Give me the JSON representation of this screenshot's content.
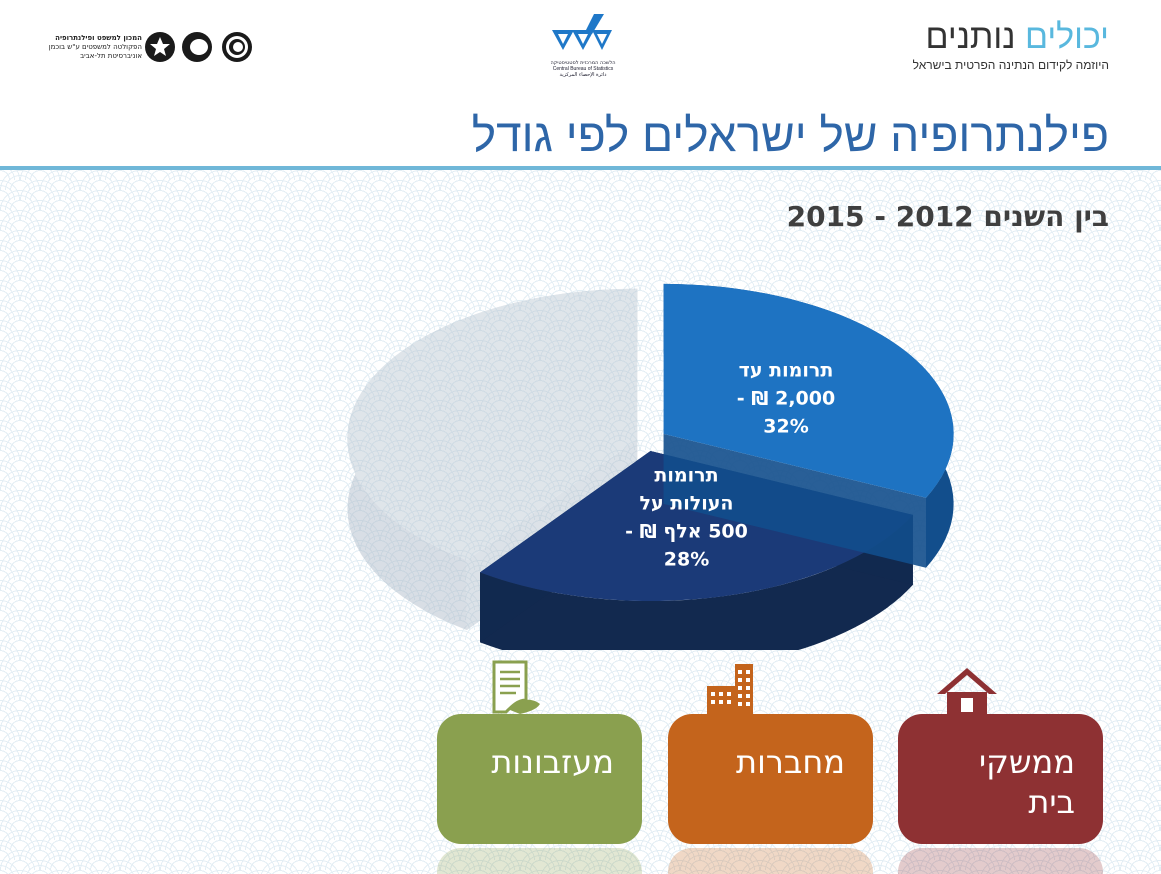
{
  "header": {
    "brand_part1": "יכולים",
    "brand_part2": "נותנים",
    "brand_tagline": "היוזמה לקידום הנתינה הפרטית בישראל",
    "cbs_hebrew": "הלשכה המרכזית לסטטיסטיקה",
    "cbs_english": "Central Bureau of Statistics",
    "cbs_arabic": "دائرة الإحصاء المركزية",
    "tau_line1": "המכון למשפט ופילנתרופיה",
    "tau_line2": "הפקולטה למשפטים ע\"ש בוכמן",
    "tau_line3": "אוניברסיטת תל-אביב"
  },
  "page": {
    "title": "פילנתרופיה של ישראלים לפי גודל",
    "subtitle": "בין השנים 2012 - 2015"
  },
  "colors": {
    "title": "#2e66a8",
    "rule": "#6fb7d8",
    "slice_small": "#1e73c2",
    "slice_large": "#1b3a78",
    "slice_rest": "#b9c6d2",
    "households": "#8e3133",
    "companies": "#c4641c",
    "foundations": "#8aa04f"
  },
  "chart_data": {
    "type": "pie",
    "title": "",
    "slices": [
      {
        "label_lines": [
          "תרומות עד",
          "2,000 ₪ -",
          "32%"
        ],
        "value": 32
      },
      {
        "label_lines": [
          "תרומות",
          "העולות על",
          "500 אלף ₪ -",
          "28%"
        ],
        "value": 28
      },
      {
        "label_lines": [],
        "value": 40
      }
    ],
    "units": "%"
  },
  "categories": [
    {
      "label_lines": [
        "ממשקי",
        "בית"
      ],
      "icon": "house-icon"
    },
    {
      "label_lines": [
        "מחברות"
      ],
      "icon": "building-icon"
    },
    {
      "label_lines": [
        "מעזבונות"
      ],
      "icon": "will-document-icon"
    }
  ]
}
